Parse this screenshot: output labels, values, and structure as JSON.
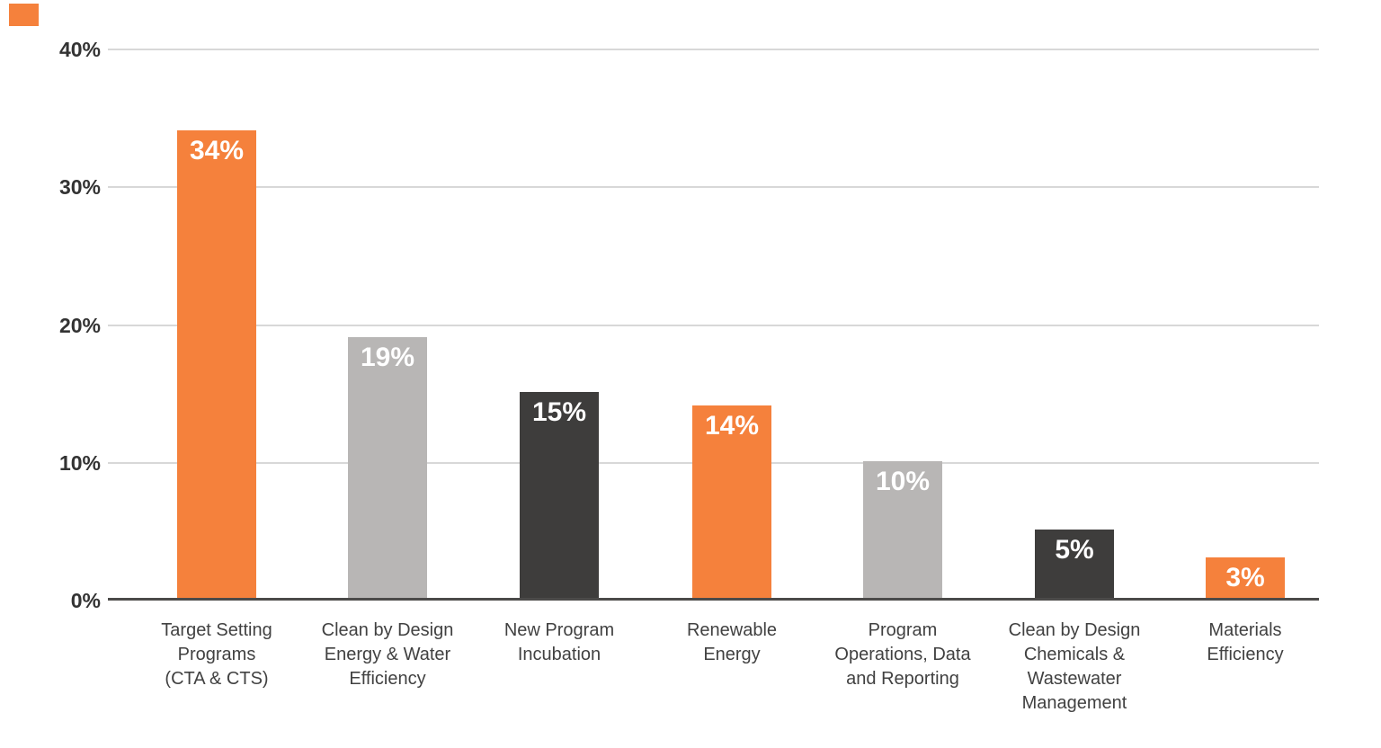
{
  "chart_data": {
    "type": "bar",
    "title": "",
    "unit": "percent",
    "categories": [
      "Target Setting Programs (CTA & CTS)",
      "Clean by Design Energy & Water Efficiency",
      "New Program Incubation",
      "Renewable Energy",
      "Program Operations, Data and Reporting",
      "Clean by Design Chemicals & Wastewater Management",
      "Materials Efficiency"
    ],
    "categories_display": [
      "Target Setting\nPrograms\n(CTA & CTS)",
      "Clean by Design\nEnergy & Water\nEfficiency",
      "New Program\nIncubation",
      "Renewable\nEnergy",
      "Program\nOperations, Data\nand Reporting",
      "Clean by Design\nChemicals &\nWastewater\nManagement",
      "Materials\nEfficiency"
    ],
    "values": [
      34,
      19,
      15,
      14,
      10,
      5,
      3
    ],
    "value_labels": [
      "34%",
      "19%",
      "15%",
      "14%",
      "10%",
      "5%",
      "3%"
    ],
    "bar_colors": [
      "#F5813C",
      "#B8B6B5",
      "#3E3D3C",
      "#F5813C",
      "#B8B6B5",
      "#3E3D3C",
      "#F5813C"
    ],
    "yticks": [
      "40%",
      "30%",
      "20%",
      "10%",
      "0%"
    ],
    "ytick_values": [
      40,
      30,
      20,
      10,
      0
    ],
    "ylim": [
      0,
      40
    ],
    "grid": true,
    "legend": "none"
  },
  "colors": {
    "orange": "#F5813C",
    "light_gray": "#B8B6B5",
    "dark_gray": "#3E3D3C",
    "gridline": "#D8D8D8",
    "axis_line": "#4B4A49",
    "tick_label": "#333333",
    "category_label": "#414141",
    "value_label": "#FFFFFF",
    "background": "#FFFFFF"
  },
  "decor": {
    "corner_square_marker_color": "#F5813C"
  }
}
